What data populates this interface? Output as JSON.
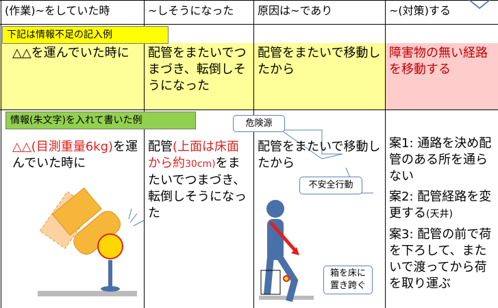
{
  "header": {
    "columns": [
      "(作業)~をしていた時",
      "~しそうになった",
      "原因は~であり",
      "~(対策)する"
    ]
  },
  "example_insufficient": {
    "label": "下記は情報不足の記入例",
    "cells": [
      "△△を運んでいた時に",
      "配管をまたいでつまづき、転倒しそうになった",
      "配管をまたいで移動したから",
      "障害物の無い経路を移動する"
    ]
  },
  "example_detailed": {
    "label": "情報(朱文字)を入れて書いた例",
    "col1": {
      "red": "△△(目測重量6kg)",
      "text": "を運んでいた時に"
    },
    "col2": {
      "before": "配管",
      "red1": "(上面は床面から約",
      "red2": "30cm)",
      "after": "をまたいでつまづき、転倒しそうになった"
    },
    "col3": "配管をまたいで移動したから",
    "col4": {
      "plan1": "案1: 通路を決め配管のある所を通らない",
      "plan2": "案2: 配管経路を変更する",
      "plan2_note": "(天井)",
      "plan3": "案3: 配管の前で荷を下ろして、またいで渡ってから荷を取り運ぶ"
    }
  },
  "callouts": {
    "hazard": "危険源",
    "unsafe_action": "不安全行動",
    "step_over": "箱を床に置き跨ぐ"
  }
}
